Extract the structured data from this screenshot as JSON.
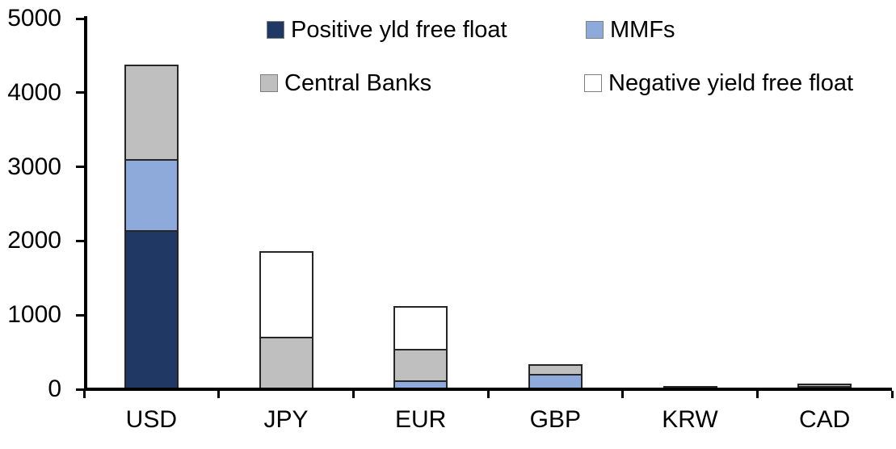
{
  "chart_data": {
    "type": "bar",
    "stacked": true,
    "title": "",
    "xlabel": "",
    "ylabel": "",
    "categories": [
      "USD",
      "JPY",
      "EUR",
      "GBP",
      "KRW",
      "CAD"
    ],
    "series": [
      {
        "name": "Positive yld free float",
        "color": "#1F3864",
        "values": [
          2150,
          0,
          0,
          0,
          45,
          45
        ]
      },
      {
        "name": "MMFs",
        "color": "#8EAADB",
        "values": [
          950,
          0,
          115,
          210,
          0,
          0
        ]
      },
      {
        "name": "Central Banks",
        "color": "#BFBFBF",
        "values": [
          1280,
          710,
          425,
          130,
          0,
          30
        ]
      },
      {
        "name": "Negative yield free float",
        "color": "#FFFFFF",
        "values": [
          0,
          1150,
          580,
          0,
          0,
          0
        ]
      }
    ],
    "totals": [
      4380,
      1860,
      1120,
      340,
      45,
      75
    ],
    "ylim": [
      0,
      5000
    ],
    "ytick_interval": 1000,
    "yticks": [
      "0",
      "1000",
      "2000",
      "3000",
      "4000",
      "5000"
    ],
    "grid": false,
    "legend_position": "top"
  },
  "legend": {
    "items": [
      {
        "label": "Positive yld free float",
        "color": "#1F3864"
      },
      {
        "label": "MMFs",
        "color": "#8EAADB"
      },
      {
        "label": "Central Banks",
        "color": "#BFBFBF"
      },
      {
        "label": "Negative yield free float",
        "color": "#FFFFFF"
      }
    ]
  },
  "colors": {
    "axis": "#000000",
    "segment_border": "#262626",
    "swatch_border": "#7F7F7F",
    "background": "#FFFFFF",
    "text": "#000000"
  }
}
